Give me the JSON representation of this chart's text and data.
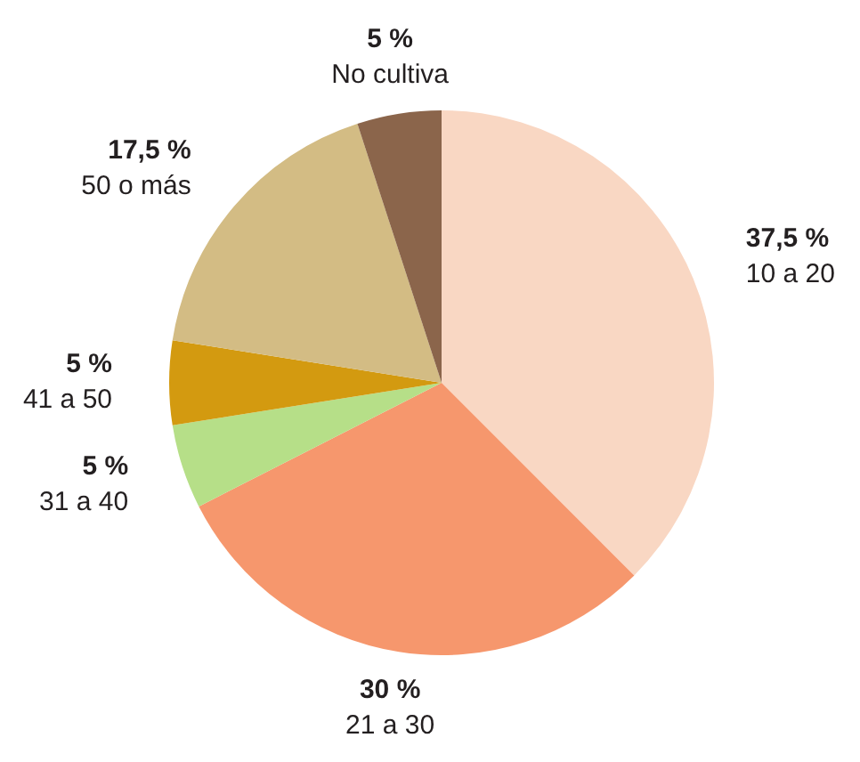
{
  "chart_data": {
    "type": "pie",
    "categories": [
      "10 a 20",
      "21 a 30",
      "31 a 40",
      "41 a 50",
      "50 o más",
      "No cultiva"
    ],
    "values": [
      37.5,
      30,
      5,
      5,
      17.5,
      5
    ],
    "colors": [
      "#f9d7c3",
      "#f6976d",
      "#b6df88",
      "#d39a10",
      "#d3bc84",
      "#8b654b"
    ],
    "value_labels": [
      "37,5 %",
      "30 %",
      "5 %",
      "5 %",
      "17,5 %",
      "5 %"
    ]
  }
}
